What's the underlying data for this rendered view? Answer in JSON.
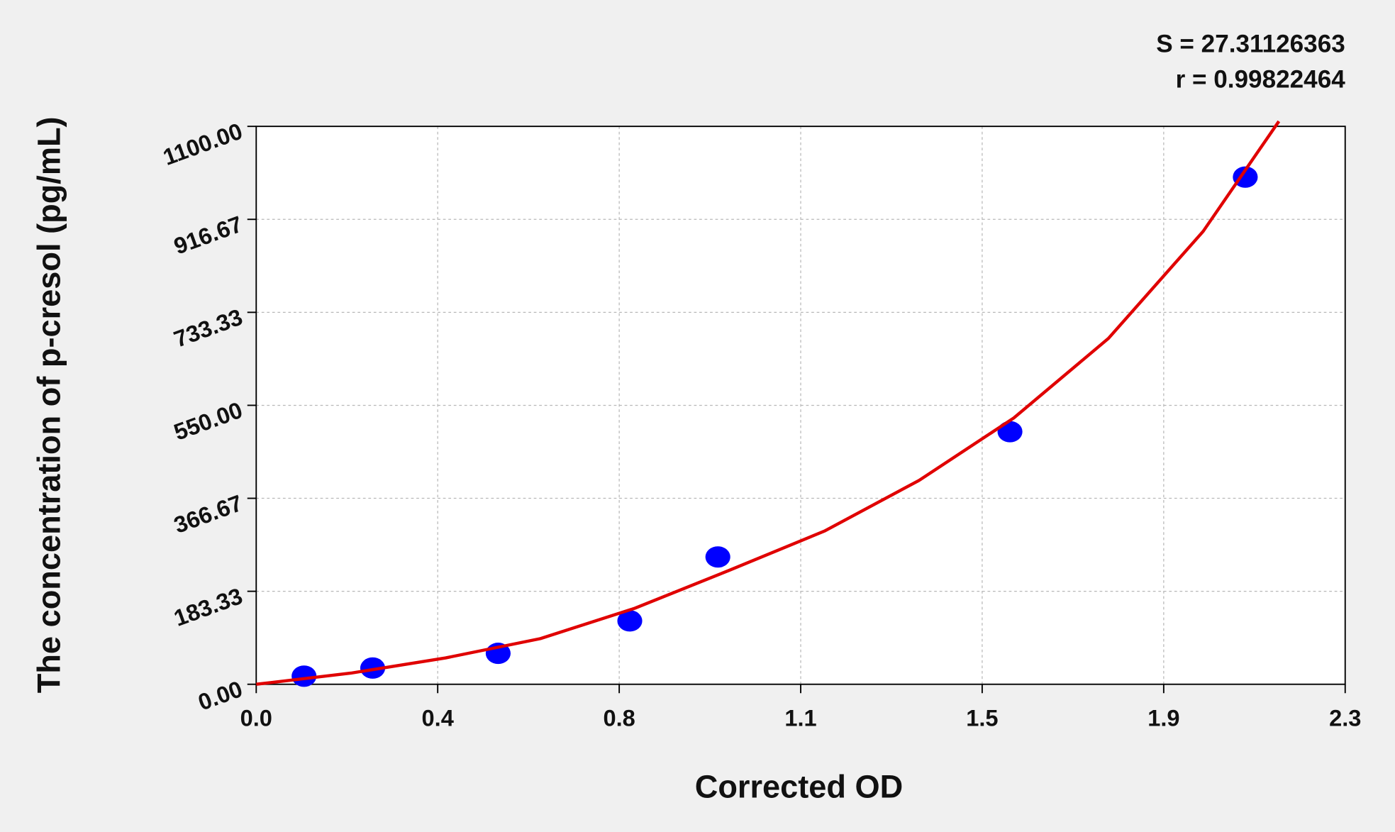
{
  "chart_data": {
    "type": "scatter",
    "annotations": [
      "S = 27.31126363",
      "r = 0.99822464"
    ],
    "x_label": "Corrected OD",
    "y_label": "The concentration of p-cresol (pg/mL)",
    "xlim": [
      0,
      2.3
    ],
    "ylim": [
      0,
      1100
    ],
    "xticks": [
      {
        "value": 0,
        "label": "0.0"
      },
      {
        "value": 0.3833,
        "label": "0.4"
      },
      {
        "value": 0.7667,
        "label": "0.8"
      },
      {
        "value": 1.15,
        "label": "1.1"
      },
      {
        "value": 1.5333,
        "label": "1.5"
      },
      {
        "value": 1.9167,
        "label": "1.9"
      },
      {
        "value": 2.3,
        "label": "2.3"
      }
    ],
    "yticks": [
      {
        "value": 0,
        "label": "0.00"
      },
      183.33,
      366.67,
      {
        "value": 550,
        "label": "550.00"
      },
      733.33,
      916.67,
      {
        "value": 1100,
        "label": "1100.00"
      }
    ],
    "grid": true,
    "series": [
      {
        "type": "scatter",
        "color": "#0000ff",
        "x": [
          0.101,
          0.246,
          0.511,
          0.789,
          0.975,
          1.592,
          2.089
        ],
        "values": [
          16,
          32,
          61,
          125,
          251,
          498,
          1000
        ]
      },
      {
        "type": "line",
        "color": "#e00000",
        "x": [
          0,
          0.2,
          0.4,
          0.6,
          0.8,
          1.0,
          1.2,
          1.4,
          1.6,
          1.8,
          2.0,
          2.16
        ],
        "values": [
          0,
          22,
          52,
          90,
          150,
          225,
          302,
          402,
          525,
          682,
          893,
          1110
        ]
      }
    ]
  }
}
